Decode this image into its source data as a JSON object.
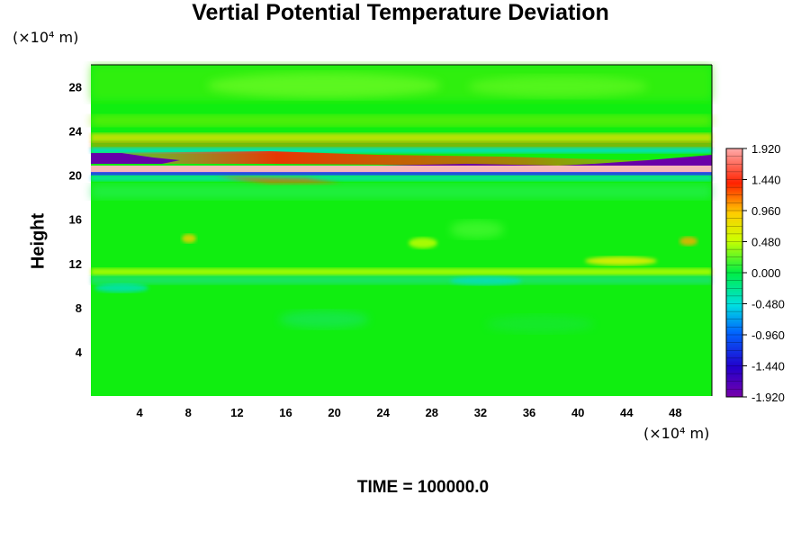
{
  "chart_data": {
    "type": "heatmap",
    "title": "Vertial Potential Temperature Deviation",
    "ylabel": "Height",
    "y_unit": "(×10⁴ m)",
    "x_unit": "(×10⁴ m)",
    "footer": "TIME = 100000.0",
    "xlim": [
      0,
      51
    ],
    "ylim": [
      0,
      30
    ],
    "x_ticks": [
      4,
      8,
      12,
      16,
      20,
      24,
      28,
      32,
      36,
      40,
      44,
      48
    ],
    "y_ticks": [
      4,
      8,
      12,
      16,
      20,
      24,
      28
    ],
    "colorbar": {
      "min": -1.92,
      "max": 1.92,
      "tick_labels": [
        "1.920",
        "1.440",
        "0.960",
        "0.480",
        "0.000",
        "-0.480",
        "-0.960",
        "-1.440",
        "-1.920"
      ],
      "tick_values": [
        1.92,
        1.44,
        0.96,
        0.48,
        0.0,
        -0.48,
        -0.96,
        -1.44,
        -1.92
      ]
    }
  }
}
